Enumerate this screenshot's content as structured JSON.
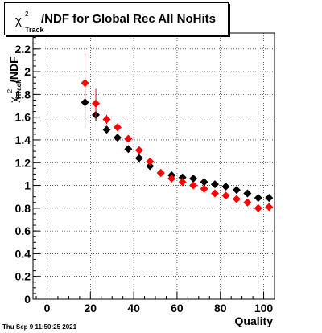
{
  "title": {
    "symbol": "χ",
    "superscript": "2",
    "subscript": "Track",
    "text": "/NDF for Global Rec All NoHits"
  },
  "axes": {
    "ylabel": {
      "symbol": "χ",
      "superscript": "2",
      "subscript": "Track",
      "text": "/NDF"
    },
    "xlabel": "Quality",
    "x_ticks": [
      "0",
      "20",
      "40",
      "60",
      "80",
      "100"
    ],
    "y_ticks": [
      "0",
      "0.2",
      "0.4",
      "0.6",
      "0.8",
      "1",
      "1.2",
      "1.4",
      "1.6",
      "1.8",
      "2",
      "2.2"
    ]
  },
  "timestamp": "Thu Sep  9 11:50:25 2021",
  "colors": {
    "series_black": "#000000",
    "series_red": "#ff0000",
    "frame": "#000000",
    "grid": "#000000"
  },
  "chart_data": {
    "type": "scatter",
    "title": "χ²_Track/NDF for Global Rec All NoHits",
    "xlabel": "Quality",
    "ylabel": "χ²_Track/NDF",
    "xlim": [
      -6.5,
      105
    ],
    "ylim": [
      0,
      2.34
    ],
    "grid": true,
    "marker": "diamond",
    "series": [
      {
        "color": "#000000",
        "x": [
          17.5,
          22.5,
          27.5,
          32.5,
          37.5,
          42.5,
          47.5,
          52.5,
          57.5,
          62.5,
          67.5,
          72.5,
          77.5,
          82.5,
          87.5,
          92.5,
          97.5,
          102.5
        ],
        "y": [
          1.73,
          1.62,
          1.49,
          1.42,
          1.32,
          1.24,
          1.17,
          1.11,
          1.09,
          1.07,
          1.06,
          1.03,
          1.01,
          0.99,
          0.96,
          0.93,
          0.89,
          0.89
        ],
        "yerr": [
          0.22,
          0.05,
          0.03,
          0.02,
          0.02,
          0.02,
          0.01,
          0.01,
          0.01,
          0.01,
          0.01,
          0.01,
          0.01,
          0.01,
          0.01,
          0.01,
          0.01,
          0.01
        ]
      },
      {
        "color": "#ff0000",
        "x": [
          17.5,
          22.5,
          27.5,
          32.5,
          37.5,
          42.5,
          47.5,
          52.5,
          57.5,
          62.5,
          67.5,
          72.5,
          77.5,
          82.5,
          87.5,
          92.5,
          97.5,
          102.5
        ],
        "y": [
          1.9,
          1.72,
          1.58,
          1.51,
          1.41,
          1.31,
          1.21,
          1.11,
          1.06,
          1.03,
          1.0,
          0.97,
          0.93,
          0.91,
          0.88,
          0.85,
          0.8,
          0.81
        ],
        "yerr": [
          0.26,
          0.13,
          0.04,
          0.02,
          0.02,
          0.02,
          0.01,
          0.01,
          0.01,
          0.01,
          0.01,
          0.01,
          0.01,
          0.01,
          0.01,
          0.01,
          0.01,
          0.01
        ]
      }
    ]
  }
}
